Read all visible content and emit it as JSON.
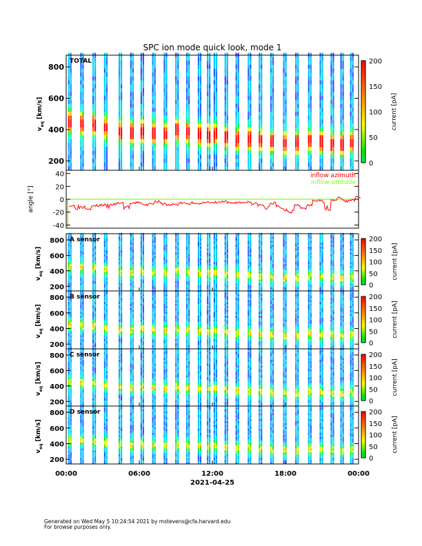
{
  "chart_data": {
    "type": "heatmap",
    "title": "SPC ion mode quick look, mode 1",
    "x_axis": {
      "ticks": [
        "00:00",
        "06:00",
        "12:00",
        "18:00",
        "00:00"
      ],
      "label": "2021-04-25",
      "range_hours": [
        0,
        24
      ]
    },
    "colors": {
      "azimuth": "#ff0000",
      "attitude": "#80ff00"
    },
    "stripes_hours": [
      0.15,
      1.15,
      2.15,
      3.1,
      4.3,
      5.25,
      6.1,
      7.05,
      8.0,
      8.95,
      9.85,
      10.8,
      11.55,
      12.1,
      13.0,
      13.9,
      14.9,
      15.8,
      16.75,
      17.8,
      18.8,
      19.85,
      20.8,
      21.7,
      22.5,
      23.3
    ],
    "peak_speed_kms": [
      440,
      430,
      420,
      400,
      380,
      370,
      380,
      370,
      360,
      380,
      370,
      360,
      350,
      360,
      340,
      330,
      330,
      320,
      310,
      300,
      300,
      320,
      310,
      300,
      300,
      310
    ],
    "panels": [
      {
        "label": "TOTAL",
        "ylabel": "v",
        "ylabel_sub": "eq",
        "ylabel_unit": "[km/s]",
        "yticks": [
          "200",
          "400",
          "600",
          "800"
        ],
        "ylim": [
          140,
          875
        ],
        "cbar_label": "current [pA]",
        "cbar_ticks": [
          "0",
          "50",
          "100",
          "150",
          "200"
        ],
        "cbar_range": [
          0,
          200
        ]
      },
      {
        "label": "A sensor",
        "ylabel": "v",
        "ylabel_sub": "eq",
        "ylabel_unit": "[km/s]",
        "yticks": [
          "200",
          "400",
          "600",
          "800"
        ],
        "ylim": [
          140,
          880
        ],
        "cbar_label": "current [pA]",
        "cbar_ticks": [
          "0",
          "50",
          "100",
          "150",
          "200"
        ],
        "cbar_range": [
          0,
          200
        ]
      },
      {
        "label": "B sensor",
        "ylabel": "v",
        "ylabel_sub": "eq",
        "ylabel_unit": "[km/s]",
        "yticks": [
          "200",
          "400",
          "600",
          "800"
        ],
        "ylim": [
          140,
          880
        ],
        "cbar_label": "current [pA]",
        "cbar_ticks": [
          "0",
          "50",
          "100",
          "150",
          "200"
        ],
        "cbar_range": [
          0,
          200
        ]
      },
      {
        "label": "C sensor",
        "ylabel": "v",
        "ylabel_sub": "eq",
        "ylabel_unit": "[km/s]",
        "yticks": [
          "200",
          "400",
          "600",
          "800"
        ],
        "ylim": [
          140,
          880
        ],
        "cbar_label": "current [pA]",
        "cbar_ticks": [
          "0",
          "50",
          "100",
          "150",
          "200"
        ],
        "cbar_range": [
          0,
          200
        ]
      },
      {
        "label": "D sensor",
        "ylabel": "v",
        "ylabel_sub": "eq",
        "ylabel_unit": "[km/s]",
        "yticks": [
          "200",
          "400",
          "600",
          "800"
        ],
        "ylim": [
          140,
          880
        ],
        "cbar_label": "current [pA]",
        "cbar_ticks": [
          "0",
          "50",
          "100",
          "150",
          "200"
        ],
        "cbar_range": [
          0,
          200
        ]
      }
    ],
    "angle_panel": {
      "ylabel": "angle [°]",
      "yticks": [
        "40",
        "20",
        "0",
        "-20",
        "-40"
      ],
      "ylim": [
        -45,
        45
      ],
      "legend": [
        "inflow azimuth",
        "inflow attitude"
      ],
      "legend_placement": "top-right",
      "azimuth_step_hours": 0.5,
      "azimuth_deg": [
        -10,
        -12,
        -11,
        -13,
        -10,
        -9,
        -11,
        -8,
        -6,
        -12,
        -7,
        -5,
        -9,
        -6,
        -4,
        -7,
        -9,
        -8,
        -6,
        -7,
        -5,
        -8,
        -4,
        -6,
        -5,
        -4,
        -6,
        -5,
        -5,
        -4,
        -7,
        -9,
        -14,
        -6,
        -12,
        -16,
        -18,
        -8,
        -15,
        -10,
        -2,
        -3,
        -14,
        -1,
        2,
        -3,
        -1,
        3
      ],
      "attitude_deg": 0
    }
  },
  "footer": {
    "line1": "Generated on Wed May  5 10:24:54 2021 by mstevens@cfa.harvard.edu",
    "line2": "For browse purposes only."
  }
}
